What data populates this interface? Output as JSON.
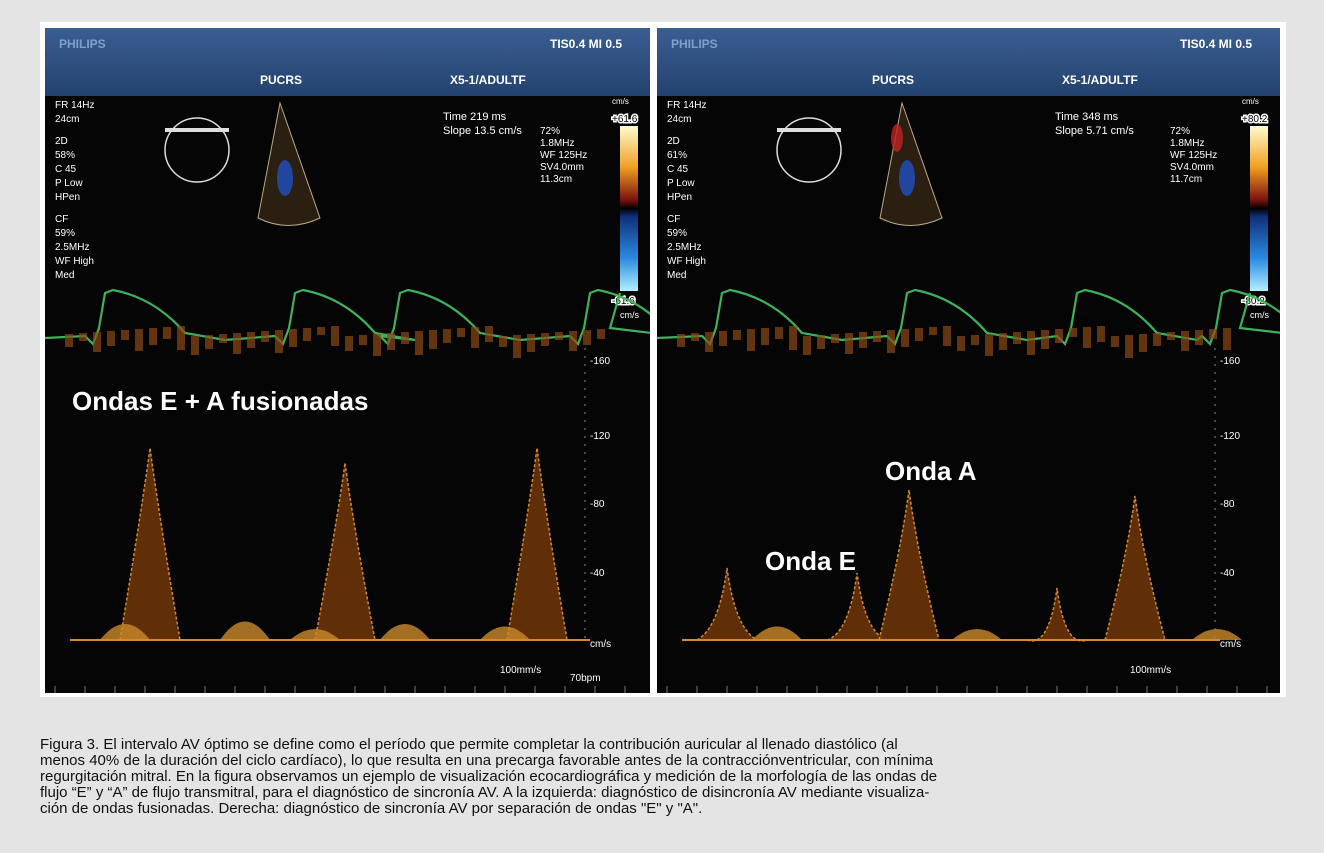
{
  "panels": [
    {
      "header": {
        "brand": "PHILIPS",
        "indices": "TIS0.4  MI 0.5",
        "site": "PUCRS",
        "probe": "X5-1/ADULTF"
      },
      "left_params": [
        "FR 14Hz",
        "24cm",
        "2D",
        "58%",
        "C 45",
        "P Low",
        "HPen",
        "CF",
        "59%",
        "2.5MHz",
        "WF High",
        "Med"
      ],
      "measurements": [
        "Time    219 ms",
        "Slope  13.5 cm/s"
      ],
      "right_params": [
        "72%",
        "1.8MHz",
        "WF 125Hz",
        "SV4.0mm",
        "11.3cm"
      ],
      "scale": {
        "unit_top": "cm/s",
        "top": "+61.6",
        "bottom": "-61.6",
        "unit": "cm/s"
      },
      "axis": [
        "-160",
        "-120",
        "-80",
        "-40",
        "cm/s"
      ],
      "sweep": "100mm/s",
      "rate": "70bpm",
      "labels": [
        "Ondas E + A fusionadas"
      ]
    },
    {
      "header": {
        "brand": "PHILIPS",
        "indices": "TIS0.4  MI 0.5",
        "site": "PUCRS",
        "probe": "X5-1/ADULTF"
      },
      "left_params": [
        "FR 14Hz",
        "24cm",
        "2D",
        "61%",
        "C 45",
        "P Low",
        "HPen",
        "CF",
        "59%",
        "2.5MHz",
        "WF High",
        "Med"
      ],
      "measurements": [
        "Time    348 ms",
        "Slope  5.71 cm/s"
      ],
      "right_params": [
        "72%",
        "1.8MHz",
        "WF 125Hz",
        "SV4.0mm",
        "11.7cm"
      ],
      "scale": {
        "unit_top": "cm/s",
        "top": "+80.2",
        "bottom": "-80.2",
        "unit": "cm/s"
      },
      "axis": [
        "-160",
        "-120",
        "-80",
        "-40",
        "cm/s"
      ],
      "sweep": "100mm/s",
      "labels": [
        "Onda A",
        "Onda E"
      ]
    }
  ],
  "caption": [
    "Figura 3. El intervalo AV óptimo se define como el período que permite completar la contribución auricular al llenado diastólico (al",
    "menos 40% de la duración del ciclo cardíaco), lo que resulta en una precarga favorable antes de la contracciónventricular, con mínima",
    "regurgitación mitral. En la figura observamos un ejemplo de visualización ecocardiográfica y medición de la morfología de las ondas de",
    "flujo “E” y “A” de flujo transmitral, para el diagnóstico de sincronía AV. A la izquierda: diagnóstico de disincronía AV mediante visualiza-",
    "ción de ondas fusionadas. Derecha: diagnóstico de sincronía AV por separación de ondas \"E\" y \"A\"."
  ]
}
